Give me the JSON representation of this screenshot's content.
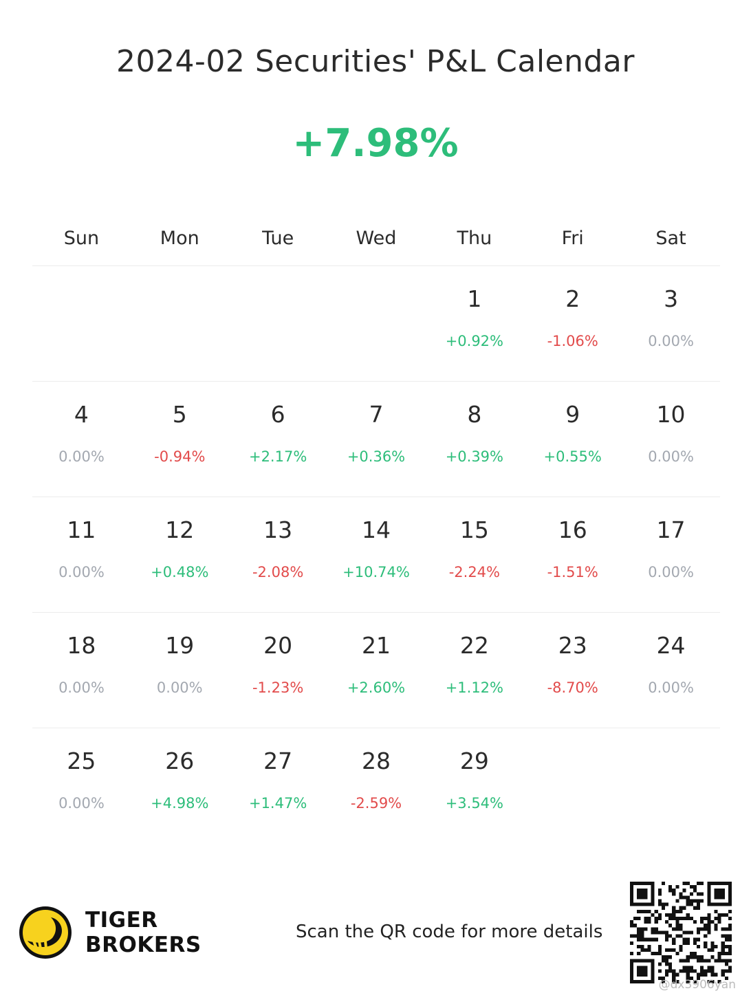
{
  "title": "2024-02 Securities' P&L Calendar",
  "total_pnl": "+7.98%",
  "colors": {
    "positive": "#2dbd7a",
    "negative": "#e24b4b",
    "neutral": "#a3a8b0"
  },
  "weekdays": [
    "Sun",
    "Mon",
    "Tue",
    "Wed",
    "Thu",
    "Fri",
    "Sat"
  ],
  "weeks": [
    [
      {
        "day": "",
        "pnl": ""
      },
      {
        "day": "",
        "pnl": ""
      },
      {
        "day": "",
        "pnl": ""
      },
      {
        "day": "",
        "pnl": ""
      },
      {
        "day": "1",
        "pnl": "+0.92%"
      },
      {
        "day": "2",
        "pnl": "-1.06%"
      },
      {
        "day": "3",
        "pnl": "0.00%"
      }
    ],
    [
      {
        "day": "4",
        "pnl": "0.00%"
      },
      {
        "day": "5",
        "pnl": "-0.94%"
      },
      {
        "day": "6",
        "pnl": "+2.17%"
      },
      {
        "day": "7",
        "pnl": "+0.36%"
      },
      {
        "day": "8",
        "pnl": "+0.39%"
      },
      {
        "day": "9",
        "pnl": "+0.55%"
      },
      {
        "day": "10",
        "pnl": "0.00%"
      }
    ],
    [
      {
        "day": "11",
        "pnl": "0.00%"
      },
      {
        "day": "12",
        "pnl": "+0.48%"
      },
      {
        "day": "13",
        "pnl": "-2.08%"
      },
      {
        "day": "14",
        "pnl": "+10.74%"
      },
      {
        "day": "15",
        "pnl": "-2.24%"
      },
      {
        "day": "16",
        "pnl": "-1.51%"
      },
      {
        "day": "17",
        "pnl": "0.00%"
      }
    ],
    [
      {
        "day": "18",
        "pnl": "0.00%"
      },
      {
        "day": "19",
        "pnl": "0.00%"
      },
      {
        "day": "20",
        "pnl": "-1.23%"
      },
      {
        "day": "21",
        "pnl": "+2.60%"
      },
      {
        "day": "22",
        "pnl": "+1.12%"
      },
      {
        "day": "23",
        "pnl": "-8.70%"
      },
      {
        "day": "24",
        "pnl": "0.00%"
      }
    ],
    [
      {
        "day": "25",
        "pnl": "0.00%"
      },
      {
        "day": "26",
        "pnl": "+4.98%"
      },
      {
        "day": "27",
        "pnl": "+1.47%"
      },
      {
        "day": "28",
        "pnl": "-2.59%"
      },
      {
        "day": "29",
        "pnl": "+3.54%"
      },
      {
        "day": "",
        "pnl": ""
      },
      {
        "day": "",
        "pnl": ""
      }
    ]
  ],
  "footer": {
    "brand_line1": "TIGER",
    "brand_line2": "BROKERS",
    "scan_text": "Scan the QR code for more details",
    "logo_icon": "tiger-logo-icon",
    "qr_icon": "qr-code-icon",
    "watermark": "@dx3906yan"
  }
}
